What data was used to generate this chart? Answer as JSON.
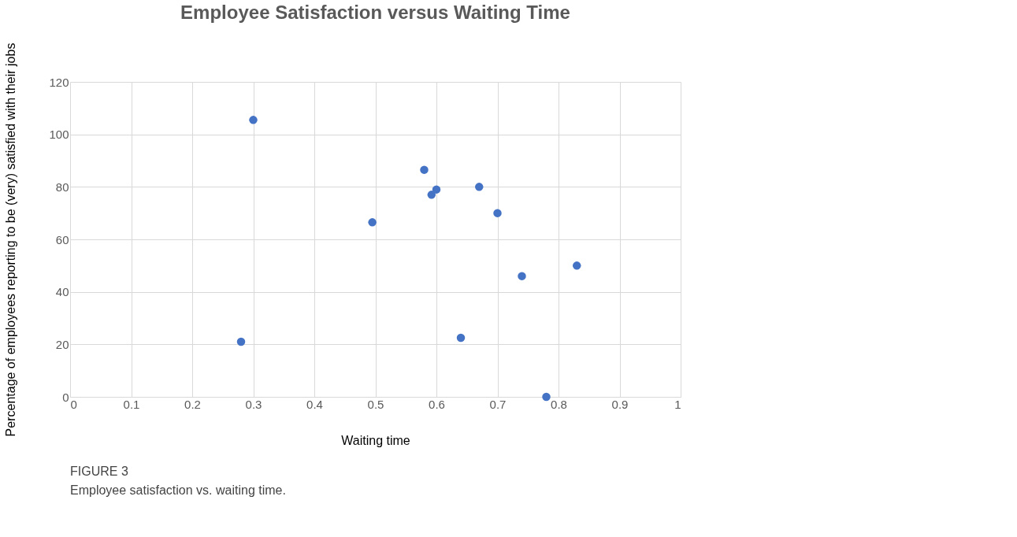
{
  "chart_data": {
    "type": "scatter",
    "title": "Employee Satisfaction versus Waiting Time",
    "xlabel": "Waiting time",
    "ylabel": "Percentage of employees reporting to be (very) satisfied with their jobs",
    "x": [
      0.28,
      0.3,
      0.495,
      0.58,
      0.592,
      0.6,
      0.64,
      0.67,
      0.7,
      0.74,
      0.78,
      0.83
    ],
    "series": [
      {
        "color": "#4472c4",
        "values": [
          21,
          105.5,
          66.5,
          86.5,
          77,
          79,
          22.5,
          80,
          70,
          46,
          0,
          50
        ]
      }
    ],
    "xlim": [
      0,
      1
    ],
    "xticks": [
      0,
      0.1,
      0.2,
      0.3,
      0.4,
      0.5,
      0.6,
      0.7,
      0.8,
      0.9,
      1
    ],
    "ylim": [
      0,
      120
    ],
    "yticks": [
      0,
      20,
      40,
      60,
      80,
      100,
      120
    ],
    "grid": true,
    "marker": "circle",
    "legend": false,
    "annotations": [
      "FIGURE 3",
      "Employee satisfaction vs. waiting time."
    ]
  }
}
